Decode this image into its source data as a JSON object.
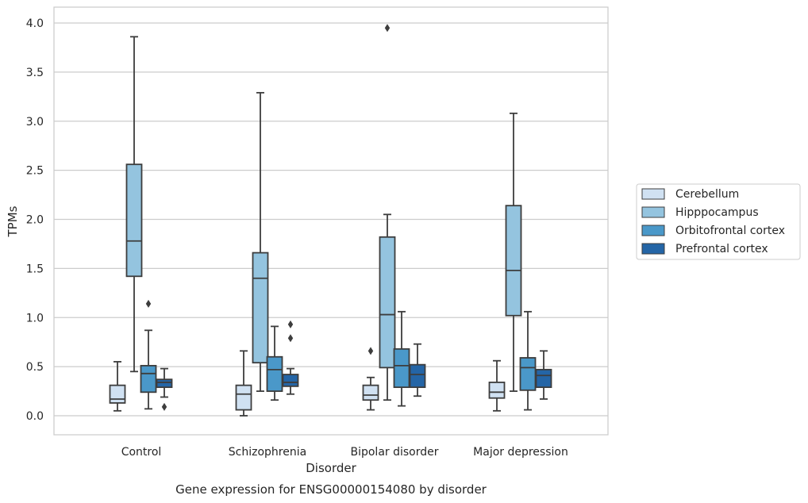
{
  "caption": "Gene expression for ENSG00000154080 by disorder",
  "chart_data": {
    "type": "box",
    "title": "",
    "xlabel": "Disorder",
    "ylabel": "TPMs",
    "ylim": [
      -0.19,
      4.16
    ],
    "yticks": [
      0.0,
      0.5,
      1.0,
      1.5,
      2.0,
      2.5,
      3.0,
      3.5,
      4.0
    ],
    "ytick_labels": [
      "0.0",
      "0.5",
      "1.0",
      "1.5",
      "2.0",
      "2.5",
      "3.0",
      "3.5",
      "4.0"
    ],
    "grid": "horizontal",
    "legend_position": "right",
    "categories": [
      "Control",
      "Schizophrenia",
      "Bipolar disorder",
      "Major depression"
    ],
    "series": [
      {
        "name": "Cerebellum",
        "color": "#d0e1f2",
        "boxes": [
          {
            "whislo": 0.05,
            "q1": 0.13,
            "med": 0.17,
            "q3": 0.31,
            "whishi": 0.55,
            "fliers": []
          },
          {
            "whislo": 0.0,
            "q1": 0.06,
            "med": 0.22,
            "q3": 0.31,
            "whishi": 0.66,
            "fliers": []
          },
          {
            "whislo": 0.06,
            "q1": 0.16,
            "med": 0.21,
            "q3": 0.31,
            "whishi": 0.39,
            "fliers": [
              0.66
            ]
          },
          {
            "whislo": 0.05,
            "q1": 0.18,
            "med": 0.24,
            "q3": 0.34,
            "whishi": 0.56,
            "fliers": []
          }
        ]
      },
      {
        "name": "Hipppocampus",
        "color": "#94c4df",
        "boxes": [
          {
            "whislo": 0.45,
            "q1": 1.42,
            "med": 1.78,
            "q3": 2.56,
            "whishi": 3.86,
            "fliers": []
          },
          {
            "whislo": 0.25,
            "q1": 0.54,
            "med": 1.4,
            "q3": 1.66,
            "whishi": 3.29,
            "fliers": []
          },
          {
            "whislo": 0.16,
            "q1": 0.49,
            "med": 1.03,
            "q3": 1.82,
            "whishi": 2.05,
            "fliers": [
              3.95
            ]
          },
          {
            "whislo": 0.25,
            "q1": 1.02,
            "med": 1.48,
            "q3": 2.14,
            "whishi": 3.08,
            "fliers": []
          }
        ]
      },
      {
        "name": "Orbitofrontal cortex",
        "color": "#4a98c9",
        "boxes": [
          {
            "whislo": 0.07,
            "q1": 0.24,
            "med": 0.43,
            "q3": 0.51,
            "whishi": 0.87,
            "fliers": [
              1.14
            ]
          },
          {
            "whislo": 0.16,
            "q1": 0.25,
            "med": 0.47,
            "q3": 0.6,
            "whishi": 0.91,
            "fliers": []
          },
          {
            "whislo": 0.1,
            "q1": 0.29,
            "med": 0.51,
            "q3": 0.68,
            "whishi": 1.06,
            "fliers": []
          },
          {
            "whislo": 0.06,
            "q1": 0.26,
            "med": 0.49,
            "q3": 0.59,
            "whishi": 1.06,
            "fliers": []
          }
        ]
      },
      {
        "name": "Prefrontal cortex",
        "color": "#2465a6",
        "boxes": [
          {
            "whislo": 0.19,
            "q1": 0.29,
            "med": 0.34,
            "q3": 0.37,
            "whishi": 0.48,
            "fliers": [
              0.09
            ]
          },
          {
            "whislo": 0.22,
            "q1": 0.3,
            "med": 0.34,
            "q3": 0.42,
            "whishi": 0.48,
            "fliers": [
              0.79,
              0.93
            ]
          },
          {
            "whislo": 0.2,
            "q1": 0.29,
            "med": 0.42,
            "q3": 0.52,
            "whishi": 0.73,
            "fliers": []
          },
          {
            "whislo": 0.17,
            "q1": 0.29,
            "med": 0.41,
            "q3": 0.47,
            "whishi": 0.66,
            "fliers": []
          }
        ]
      }
    ]
  }
}
